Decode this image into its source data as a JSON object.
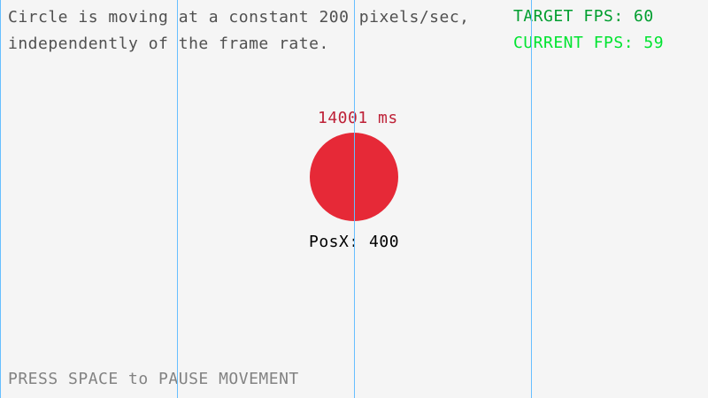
{
  "info": {
    "line1": "Circle is moving at a constant 200 pixels/sec,",
    "line2": "independently of the frame rate."
  },
  "fps": {
    "target": "TARGET FPS: 60",
    "current": "CURRENT FPS: 59"
  },
  "circle": {
    "elapsed": "14001 ms",
    "position": "PosX: 400",
    "color": "#e62937"
  },
  "hint": "PRESS SPACE to PAUSE MOVEMENT",
  "colors": {
    "background": "#f5f5f5",
    "grid_lines": "#66bfff",
    "target_fps": "#009e2f",
    "current_fps": "#00e430",
    "elapsed": "#be2137",
    "text": "#505050",
    "hint": "#828282"
  }
}
